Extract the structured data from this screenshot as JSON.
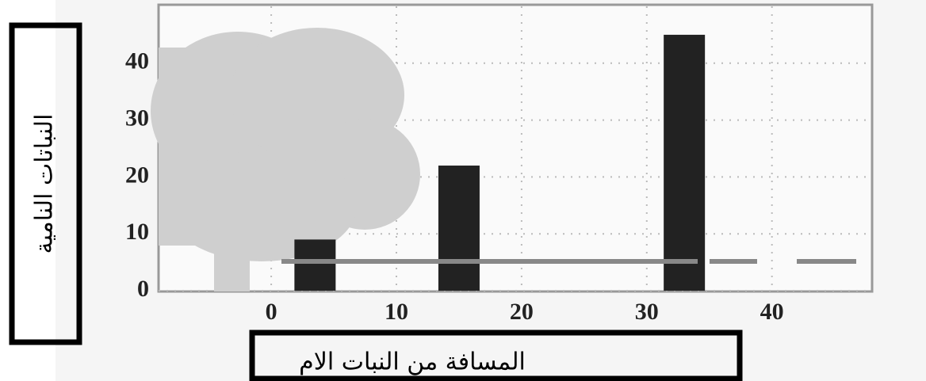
{
  "chart_data": {
    "type": "bar",
    "x": [
      3.5,
      15,
      33
    ],
    "values": [
      9,
      22,
      45
    ],
    "color": "#222222",
    "xlim": [
      -9,
      48
    ],
    "xticks": [
      0,
      10,
      20,
      30,
      40
    ],
    "ylim": [
      0,
      50
    ],
    "yticks": [
      0,
      10,
      20,
      30,
      40
    ],
    "x_label": "المسافة من النبات الام",
    "y_label": "النباتات النامية",
    "grid": true
  }
}
